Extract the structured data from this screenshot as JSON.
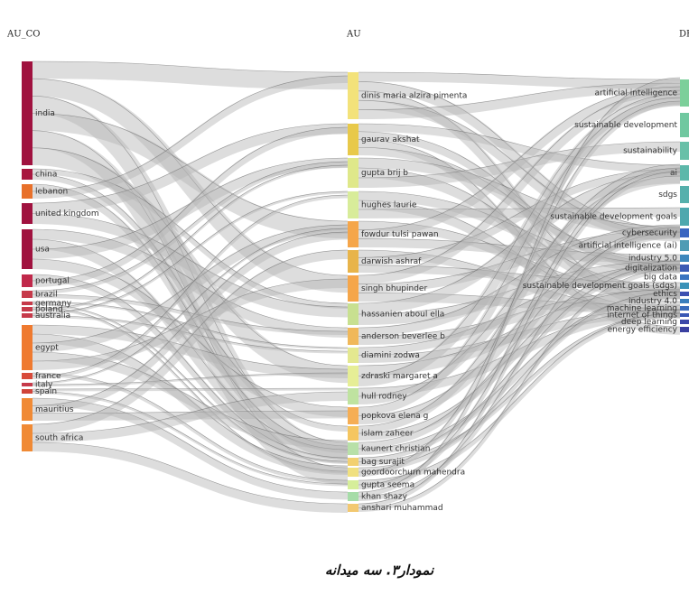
{
  "headers": [
    "AU_CO",
    "AU",
    "DE"
  ],
  "left_nodes": [
    "india",
    "china",
    "lebanon",
    "united kingdom",
    "usa",
    "portugal",
    "brazil",
    "germany",
    "poland",
    "australia",
    "egypt",
    "france",
    "italy",
    "spain",
    "mauritius",
    "south africa"
  ],
  "middle_nodes": [
    "dinis maria alzira pimenta",
    "gaurav akshat",
    "gupta brij b",
    "hughes laurie",
    "fowdur tulsi pawan",
    "darwish ashraf",
    "singh bhupinder",
    "hassanien aboul ella",
    "anderson beverlee b",
    "diamini zodwa",
    "zdraski margaret a",
    "hull rodney",
    "popkova elena g",
    "islam zaheer",
    "kaunert christian",
    "bag surajit",
    "goordoorchurn mahendra",
    "gupta seema",
    "khan shazy",
    "anshari muhammad"
  ],
  "right_nodes": [
    "artificial intelligence",
    "sustainable development",
    "sustainability",
    "ai",
    "sdgs",
    "sustainable development goals",
    "cybersecurity",
    "artificial intelligence (ai)",
    "industry 5.0",
    "digitalization",
    "big data",
    "sustainable development goals (sdgs)",
    "ethics",
    "industry 4.0",
    "machine learning",
    "internet of things",
    "deep learning",
    "energy efficiency"
  ],
  "caption": "نمودار۳. سه میدانه"
}
